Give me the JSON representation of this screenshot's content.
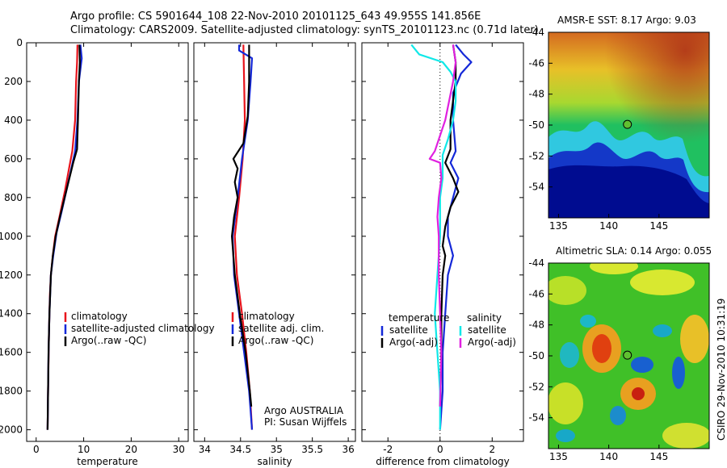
{
  "header": {
    "line1": "Argo profile: CS 5901644_108 22-Nov-2010 20101125_643 49.955S 141.856E",
    "line2": "Climatology: CARS2009. Satellite-adjusted climatology: synTS_20101123.nc (0.71d later)"
  },
  "credit": "CSIRO 29-Nov-2010 10:31:19",
  "colors": {
    "red": "#e8141c",
    "blue": "#1428d8",
    "black": "#000000",
    "cyan": "#10e8e8",
    "magenta": "#e020e0"
  },
  "chart_data": [
    {
      "type": "line",
      "xlabel": "temperature",
      "xlim": [
        -2,
        32
      ],
      "ylim": [
        2060,
        0
      ],
      "xticks": [
        0,
        10,
        20,
        30
      ],
      "yticks": [
        0,
        200,
        400,
        600,
        800,
        1000,
        1200,
        1400,
        1600,
        1800,
        2000
      ],
      "legend": {
        "placement": "bottom-right",
        "entries": [
          {
            "label": "climatology",
            "color": "#e8141c"
          },
          {
            "label": "satellite-adjusted climatology",
            "color": "#1428d8"
          },
          {
            "label": "Argo(..raw -QC)",
            "color": "#000000"
          }
        ]
      },
      "series": [
        {
          "color": "#e8141c",
          "points": [
            [
              8.7,
              10
            ],
            [
              8.6,
              100
            ],
            [
              8.4,
              200
            ],
            [
              8.2,
              400
            ],
            [
              7.6,
              560
            ],
            [
              7.0,
              640
            ],
            [
              6.1,
              760
            ],
            [
              4.9,
              900
            ],
            [
              4.0,
              1000
            ],
            [
              3.5,
              1100
            ],
            [
              3.1,
              1200
            ],
            [
              2.9,
              1300
            ],
            [
              2.7,
              1500
            ],
            [
              2.5,
              1800
            ],
            [
              2.4,
              2000
            ]
          ]
        },
        {
          "color": "#1428d8",
          "points": [
            [
              9.3,
              10
            ],
            [
              9.6,
              80
            ],
            [
              9.0,
              200
            ],
            [
              8.7,
              400
            ],
            [
              8.2,
              560
            ],
            [
              7.4,
              650
            ],
            [
              6.4,
              760
            ],
            [
              5.3,
              880
            ],
            [
              4.3,
              980
            ],
            [
              3.6,
              1100
            ],
            [
              3.1,
              1200
            ],
            [
              2.8,
              1400
            ],
            [
              2.6,
              1600
            ],
            [
              2.5,
              1800
            ],
            [
              2.4,
              2000
            ]
          ]
        },
        {
          "color": "#000000",
          "points": [
            [
              9.1,
              10
            ],
            [
              9.2,
              100
            ],
            [
              9.0,
              200
            ],
            [
              8.8,
              400
            ],
            [
              8.6,
              550
            ],
            [
              7.8,
              620
            ],
            [
              7.0,
              700
            ],
            [
              6.2,
              780
            ],
            [
              5.0,
              900
            ],
            [
              4.1,
              1000
            ],
            [
              3.5,
              1100
            ],
            [
              3.1,
              1200
            ],
            [
              2.8,
              1400
            ],
            [
              2.6,
              1600
            ],
            [
              2.5,
              1800
            ],
            [
              2.4,
              2000
            ]
          ]
        }
      ]
    },
    {
      "type": "line",
      "xlabel": "salinity",
      "xlim": [
        33.85,
        36.1
      ],
      "ylim": [
        2060,
        0
      ],
      "xticks": [
        34,
        34.5,
        35,
        35.5,
        36
      ],
      "annotation": [
        "Argo AUSTRALIA",
        "PI: Susan Wijffels"
      ],
      "legend": {
        "placement": "bottom-right",
        "entries": [
          {
            "label": "climatology",
            "color": "#e8141c"
          },
          {
            "label": "satellite adj. clim.",
            "color": "#1428d8"
          },
          {
            "label": "Argo(..raw -QC)",
            "color": "#000000"
          }
        ]
      },
      "series": [
        {
          "color": "#e8141c",
          "points": [
            [
              34.54,
              10
            ],
            [
              34.55,
              200
            ],
            [
              34.56,
              400
            ],
            [
              34.53,
              600
            ],
            [
              34.48,
              800
            ],
            [
              34.42,
              1000
            ],
            [
              34.45,
              1200
            ],
            [
              34.52,
              1400
            ],
            [
              34.58,
              1600
            ],
            [
              34.63,
              1800
            ],
            [
              34.66,
              2000
            ]
          ]
        },
        {
          "color": "#1428d8",
          "points": [
            [
              34.48,
              10
            ],
            [
              34.48,
              40
            ],
            [
              34.66,
              80
            ],
            [
              34.64,
              200
            ],
            [
              34.6,
              400
            ],
            [
              34.52,
              600
            ],
            [
              34.46,
              800
            ],
            [
              34.39,
              1000
            ],
            [
              34.41,
              1200
            ],
            [
              34.48,
              1400
            ],
            [
              34.55,
              1600
            ],
            [
              34.62,
              1800
            ],
            [
              34.66,
              2000
            ]
          ]
        },
        {
          "color": "#000000",
          "points": [
            [
              34.62,
              10
            ],
            [
              34.62,
              200
            ],
            [
              34.6,
              380
            ],
            [
              34.54,
              520
            ],
            [
              34.4,
              600
            ],
            [
              34.46,
              650
            ],
            [
              34.42,
              720
            ],
            [
              34.46,
              800
            ],
            [
              34.41,
              900
            ],
            [
              34.38,
              1000
            ],
            [
              34.42,
              1200
            ],
            [
              34.49,
              1400
            ],
            [
              34.57,
              1600
            ],
            [
              34.63,
              1800
            ],
            [
              34.65,
              1880
            ]
          ]
        }
      ]
    },
    {
      "type": "line",
      "xlabel": "difference from climatology",
      "xlim": [
        -3,
        3.2
      ],
      "ylim": [
        2060,
        0
      ],
      "xticks": [
        -2,
        0,
        2
      ],
      "legend": {
        "placement": "bottom",
        "entries": [
          {
            "label": "temperature",
            "color": ""
          },
          {
            "label": "satellite",
            "color": "#1428d8"
          },
          {
            "label": "Argo(-adj)",
            "color": "#000000"
          },
          {
            "label": "salinity",
            "color": ""
          },
          {
            "label": "satellite",
            "color": "#10e8e8"
          },
          {
            "label": "Argo(-adj)",
            "color": "#e020e0"
          }
        ]
      },
      "series": [
        {
          "color": "#1428d8",
          "points": [
            [
              0.6,
              10
            ],
            [
              0.9,
              60
            ],
            [
              1.2,
              100
            ],
            [
              0.8,
              160
            ],
            [
              0.5,
              260
            ],
            [
              0.5,
              400
            ],
            [
              0.6,
              560
            ],
            [
              0.4,
              620
            ],
            [
              0.7,
              700
            ],
            [
              0.5,
              800
            ],
            [
              0.3,
              900
            ],
            [
              0.3,
              1000
            ],
            [
              0.5,
              1100
            ],
            [
              0.3,
              1200
            ],
            [
              0.2,
              1400
            ],
            [
              0.1,
              1600
            ],
            [
              0.1,
              1800
            ],
            [
              0.0,
              2000
            ]
          ]
        },
        {
          "color": "#000000",
          "points": [
            [
              0.5,
              10
            ],
            [
              0.6,
              100
            ],
            [
              0.6,
              200
            ],
            [
              0.4,
              400
            ],
            [
              0.4,
              550
            ],
            [
              0.2,
              620
            ],
            [
              0.5,
              700
            ],
            [
              0.7,
              770
            ],
            [
              0.4,
              850
            ],
            [
              0.2,
              950
            ],
            [
              0.1,
              1050
            ],
            [
              0.2,
              1100
            ],
            [
              0.1,
              1200
            ],
            [
              0.05,
              1400
            ],
            [
              0.05,
              1600
            ],
            [
              0.0,
              1880
            ]
          ]
        },
        {
          "color": "#10e8e8",
          "points": [
            [
              -1.1,
              10
            ],
            [
              -0.8,
              60
            ],
            [
              0.1,
              100
            ],
            [
              0.4,
              150
            ],
            [
              0.6,
              200
            ],
            [
              0.6,
              300
            ],
            [
              0.5,
              400
            ],
            [
              0.3,
              500
            ],
            [
              0.1,
              580
            ],
            [
              0.1,
              700
            ],
            [
              0.0,
              800
            ],
            [
              0.0,
              1000
            ],
            [
              -0.1,
              1200
            ],
            [
              -0.2,
              1400
            ],
            [
              -0.1,
              1600
            ],
            [
              0.0,
              1800
            ],
            [
              0.0,
              2000
            ]
          ]
        },
        {
          "color": "#e020e0",
          "points": [
            [
              0.5,
              10
            ],
            [
              0.6,
              100
            ],
            [
              0.5,
              200
            ],
            [
              0.2,
              400
            ],
            [
              -0.2,
              560
            ],
            [
              -0.4,
              600
            ],
            [
              0.0,
              620
            ],
            [
              0.05,
              700
            ],
            [
              -0.05,
              800
            ],
            [
              -0.1,
              900
            ],
            [
              -0.05,
              1000
            ],
            [
              -0.05,
              1100
            ],
            [
              -0.05,
              1200
            ],
            [
              0.0,
              1400
            ],
            [
              0.05,
              1600
            ],
            [
              0.0,
              1880
            ]
          ]
        }
      ]
    },
    {
      "type": "heatmap",
      "title": "AMSR-E SST: 8.17 Argo: 9.03",
      "xlim": [
        134,
        150
      ],
      "ylim": [
        -56,
        -44
      ],
      "xticks": [
        135,
        140,
        145
      ],
      "yticks": [
        -44,
        -46,
        -48,
        -50,
        -52,
        -54
      ],
      "marker": {
        "lon": 141.856,
        "lat": -49.955
      }
    },
    {
      "type": "heatmap",
      "title": "Altimetric SLA: 0.14 Argo: 0.055",
      "xlim": [
        134,
        150
      ],
      "ylim": [
        -56,
        -44
      ],
      "xticks": [
        135,
        140,
        145
      ],
      "yticks": [
        -44,
        -46,
        -48,
        -50,
        -52,
        -54
      ],
      "marker": {
        "lon": 141.856,
        "lat": -49.955
      }
    }
  ]
}
